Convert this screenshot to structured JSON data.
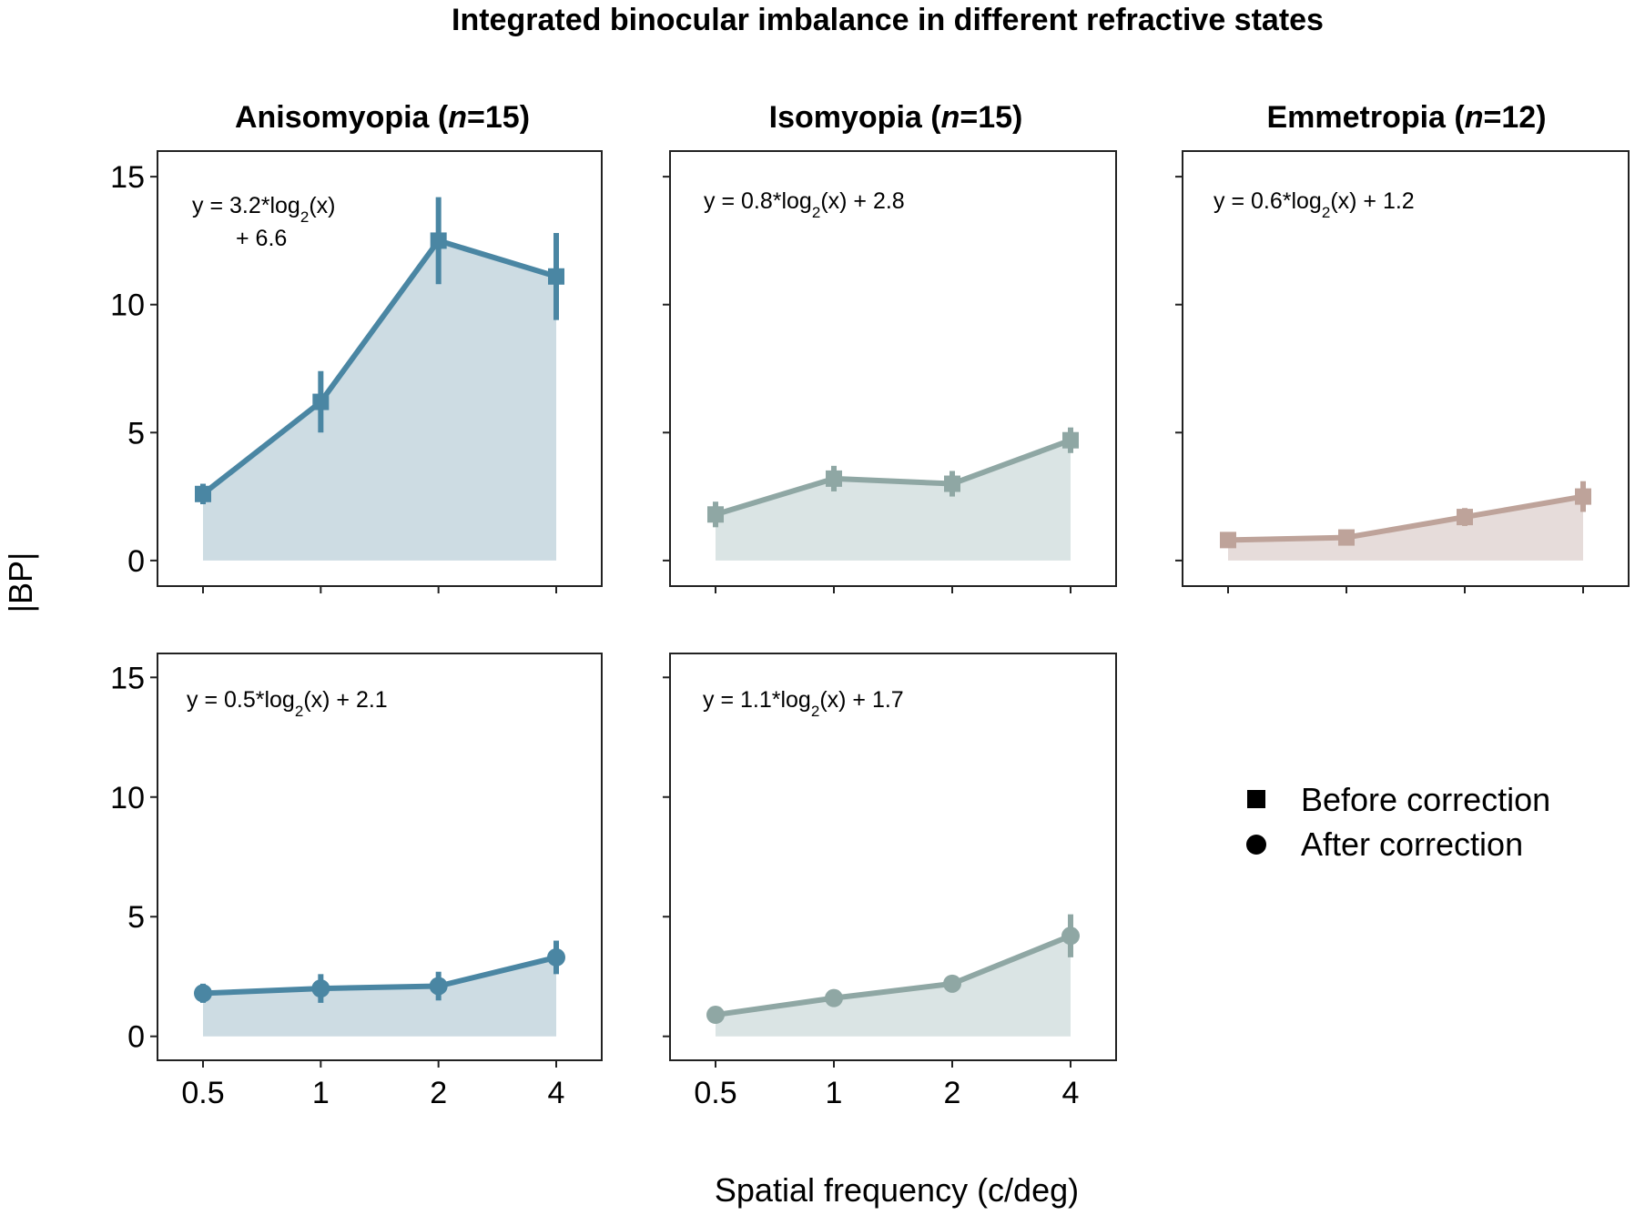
{
  "chart_data": {
    "type": "line",
    "title": "Integrated binocular imbalance in different refractive states",
    "ylabel": "|BP|",
    "xlabel": "Spatial frequency (c/deg)",
    "x": [
      0.5,
      1,
      2,
      4
    ],
    "x_tick_labels": [
      "0.5",
      "1",
      "2",
      "4"
    ],
    "ylim": [
      -1,
      16
    ],
    "y_ticks": [
      0,
      5,
      10,
      15
    ],
    "y_tick_labels": [
      "0",
      "5",
      "10",
      "15"
    ],
    "legend": {
      "position": "bottom-right",
      "entries": [
        {
          "marker": "square",
          "label": "Before correction"
        },
        {
          "marker": "circle",
          "label": "After correction"
        }
      ]
    },
    "panel_titles": {
      "anisomyopia": {
        "name": "Anisomyopia (",
        "n": "n",
        "count": "=15)"
      },
      "isomyopia": {
        "name": "Isomyopia (",
        "n": "n",
        "count": "=15)"
      },
      "emmetropia": {
        "name": "Emmetropia (",
        "n": "n",
        "count": "=12)"
      }
    },
    "panels": [
      {
        "id": "aniso-before",
        "group": "anisomyopia",
        "condition": "Before correction",
        "marker": "square",
        "color": "#4a86a3",
        "fill": "#cddce3",
        "values": [
          2.6,
          6.2,
          12.5,
          11.1
        ],
        "errors": [
          0.4,
          1.2,
          1.7,
          1.7
        ],
        "equation": {
          "line1": "y = 3.2*log",
          "sub": "2",
          "line1_end": "(x)",
          "line2": "+ 6.6"
        }
      },
      {
        "id": "iso-before",
        "group": "isomyopia",
        "condition": "Before correction",
        "marker": "square",
        "color": "#8fa7a4",
        "fill": "#dae4e4",
        "values": [
          1.8,
          3.2,
          3.0,
          4.7
        ],
        "errors": [
          0.5,
          0.5,
          0.5,
          0.5
        ],
        "equation": {
          "pre": "y = 0.8*log",
          "sub": "2",
          "post": "(x) + 2.8"
        }
      },
      {
        "id": "emm-before",
        "group": "emmetropia",
        "condition": "Before correction",
        "marker": "square",
        "color": "#bea39a",
        "fill": "#e6dcda",
        "values": [
          0.8,
          0.9,
          1.7,
          2.5
        ],
        "errors": [
          0.2,
          0.2,
          0.35,
          0.6
        ],
        "equation": {
          "pre": "y = 0.6*log",
          "sub": "2",
          "post": "(x) + 1.2"
        }
      },
      {
        "id": "aniso-after",
        "group": "anisomyopia",
        "condition": "After correction",
        "marker": "circle",
        "color": "#4a86a3",
        "fill": "#cddce3",
        "values": [
          1.8,
          2.0,
          2.1,
          3.3
        ],
        "errors": [
          0.4,
          0.6,
          0.6,
          0.7
        ],
        "equation": {
          "pre": "y = 0.5*log",
          "sub": "2",
          "post": "(x) + 2.1"
        }
      },
      {
        "id": "iso-after",
        "group": "isomyopia",
        "condition": "After correction",
        "marker": "circle",
        "color": "#8fa7a4",
        "fill": "#dae4e4",
        "values": [
          0.9,
          1.6,
          2.2,
          4.2
        ],
        "errors": [
          0.15,
          0.2,
          0.35,
          0.9
        ],
        "equation": {
          "pre": "y = 1.1*log",
          "sub": "2",
          "post": "(x) + 1.7"
        }
      }
    ]
  }
}
